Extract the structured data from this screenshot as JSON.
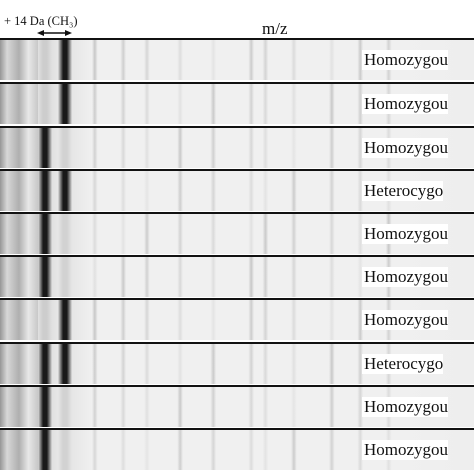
{
  "header": {
    "mass_shift_label": "+ 14 Da (CH₃)",
    "axis_label": "m/z"
  },
  "lanes": [
    {
      "label": "Homozygou",
      "peak": "shifted"
    },
    {
      "label": "Homozygou",
      "peak": "shifted"
    },
    {
      "label": "Homozygou",
      "peak": "original"
    },
    {
      "label": "Heterocygo",
      "peak": "both"
    },
    {
      "label": "Homozygou",
      "peak": "original"
    },
    {
      "label": "Homozygou",
      "peak": "original"
    },
    {
      "label": "Homozygou",
      "peak": "shifted"
    },
    {
      "label": "Heterocygo",
      "peak": "both"
    },
    {
      "label": "Homozygou",
      "peak": "original"
    },
    {
      "label": "Homozygou",
      "peak": "original"
    }
  ]
}
